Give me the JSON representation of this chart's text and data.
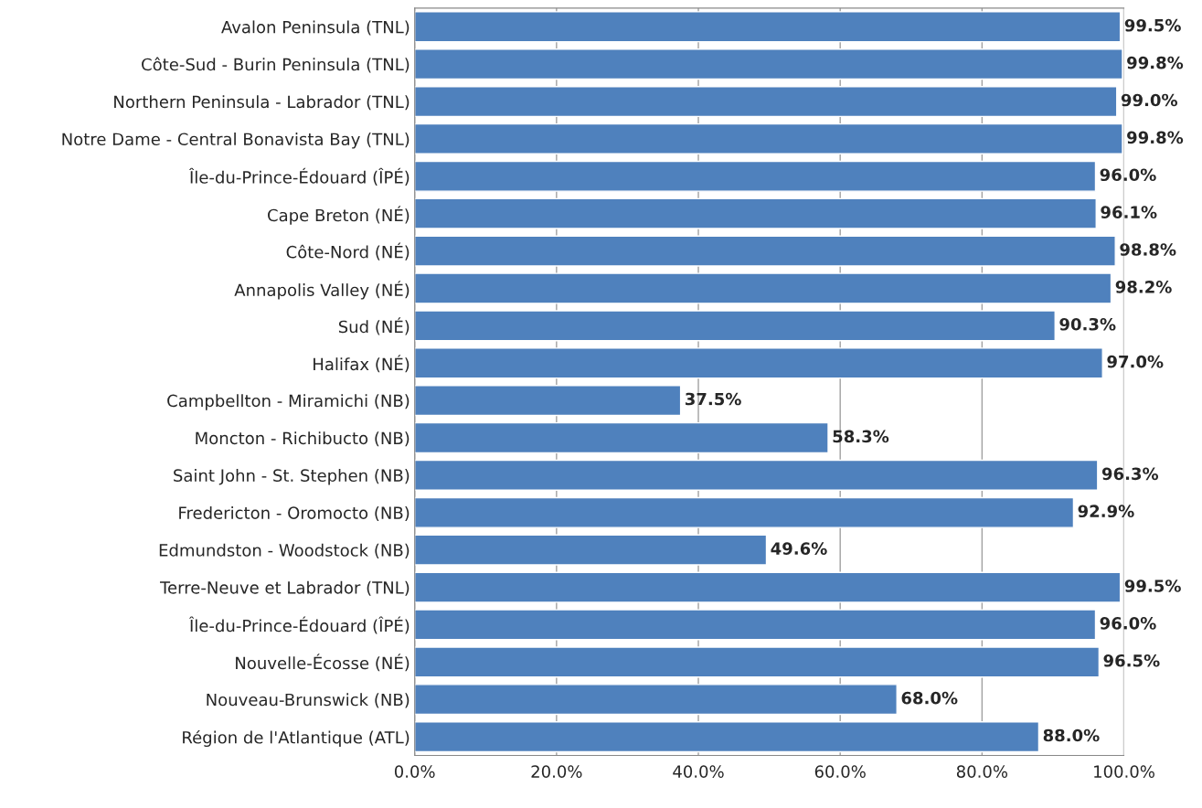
{
  "chart_data": {
    "type": "bar",
    "orientation": "horizontal",
    "categories": [
      "Avalon Peninsula (TNL)",
      "Côte-Sud - Burin Peninsula (TNL)",
      "Northern Peninsula - Labrador (TNL)",
      "Notre Dame - Central Bonavista Bay (TNL)",
      "Île-du-Prince-Édouard (ÎPÉ)",
      "Cape Breton (NÉ)",
      "Côte-Nord (NÉ)",
      "Annapolis Valley (NÉ)",
      "Sud (NÉ)",
      "Halifax (NÉ)",
      "Campbellton - Miramichi (NB)",
      "Moncton - Richibucto (NB)",
      "Saint John - St. Stephen (NB)",
      "Fredericton - Oromocto (NB)",
      "Edmundston - Woodstock (NB)",
      "Terre-Neuve et Labrador (TNL)",
      "Île-du-Prince-Édouard (ÎPÉ)",
      "Nouvelle-Écosse (NÉ)",
      "Nouveau-Brunswick (NB)",
      "Région de l'Atlantique (ATL)"
    ],
    "values": [
      99.5,
      99.8,
      99.0,
      99.8,
      96.0,
      96.1,
      98.8,
      98.2,
      90.3,
      97.0,
      37.5,
      58.3,
      96.3,
      92.9,
      49.6,
      99.5,
      96.0,
      96.5,
      68.0,
      88.0
    ],
    "value_labels": [
      "99.5%",
      "99.8%",
      "99.0%",
      "99.8%",
      "96.0%",
      "96.1%",
      "98.8%",
      "98.2%",
      "90.3%",
      "97.0%",
      "37.5%",
      "58.3%",
      "96.3%",
      "92.9%",
      "49.6%",
      "99.5%",
      "96.0%",
      "96.5%",
      "68.0%",
      "88.0%"
    ],
    "color": "#4f81bd",
    "xlim": [
      0,
      100
    ],
    "xticks": [
      {
        "value": 0,
        "label": "0.0%"
      },
      {
        "value": 20,
        "label": "20.0%"
      },
      {
        "value": 40,
        "label": "40.0%"
      },
      {
        "value": 60,
        "label": "60.0%"
      },
      {
        "value": 80,
        "label": "80.0%"
      },
      {
        "value": 100,
        "label": "100.0%"
      }
    ],
    "grid": "x",
    "legend": false
  }
}
